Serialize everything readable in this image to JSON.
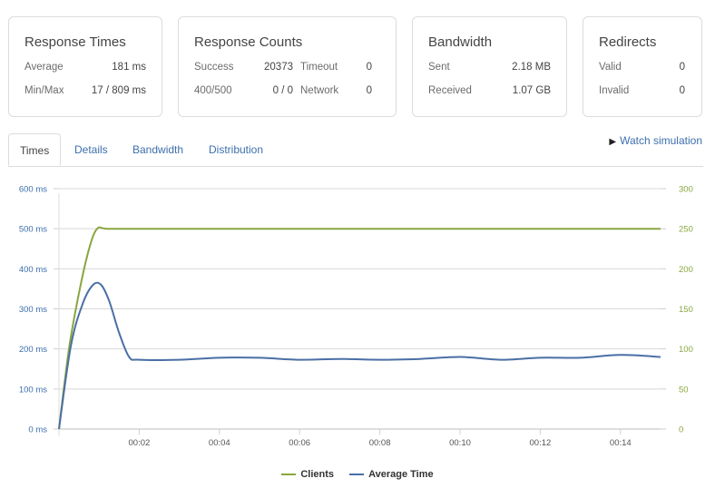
{
  "stats": {
    "response_times": {
      "title": "Response Times",
      "rows": [
        {
          "label": "Average",
          "value": "181 ms"
        },
        {
          "label": "Min/Max",
          "value": "17 / 809 ms"
        }
      ]
    },
    "response_counts": {
      "title": "Response Counts",
      "rows": [
        {
          "label": "Success",
          "value": "20373",
          "label2": "Timeout",
          "value2": "0"
        },
        {
          "label": "400/500",
          "value": "0 / 0",
          "label2": "Network",
          "value2": "0"
        }
      ]
    },
    "bandwidth": {
      "title": "Bandwidth",
      "rows": [
        {
          "label": "Sent",
          "value": "2.18 MB"
        },
        {
          "label": "Received",
          "value": "1.07 GB"
        }
      ]
    },
    "redirects": {
      "title": "Redirects",
      "rows": [
        {
          "label": "Valid",
          "value": "0"
        },
        {
          "label": "Invalid",
          "value": "0"
        }
      ]
    }
  },
  "tabs": [
    {
      "label": "Times",
      "active": true
    },
    {
      "label": "Details",
      "active": false
    },
    {
      "label": "Bandwidth",
      "active": false
    },
    {
      "label": "Distribution",
      "active": false
    }
  ],
  "watch_simulation": "Watch simulation",
  "chart_data": {
    "type": "line",
    "x_ticks": [
      "00:02",
      "00:04",
      "00:06",
      "00:08",
      "00:10",
      "00:12",
      "00:14"
    ],
    "x_tick_values": [
      2,
      4,
      6,
      8,
      10,
      12,
      14
    ],
    "xlim": [
      0,
      15
    ],
    "y_left": {
      "ticks": [
        "0 ms",
        "100 ms",
        "200 ms",
        "300 ms",
        "400 ms",
        "500 ms",
        "600 ms"
      ],
      "lim": [
        0,
        600
      ]
    },
    "y_right": {
      "ticks": [
        "0",
        "50",
        "100",
        "150",
        "200",
        "250",
        "300"
      ],
      "lim": [
        0,
        300
      ]
    },
    "grid": true,
    "legend_position": "bottom-center",
    "series": [
      {
        "name": "Clients",
        "axis": "right",
        "color": "#8aa63f",
        "x": [
          0,
          0.25,
          0.5,
          0.75,
          0.95,
          1.2,
          2,
          4,
          6,
          8,
          10,
          12,
          14,
          15
        ],
        "y": [
          0,
          100,
          170,
          225,
          250,
          250,
          250,
          250,
          250,
          250,
          250,
          250,
          250,
          250
        ]
      },
      {
        "name": "Average Time",
        "axis": "left",
        "color": "#4a6fa5",
        "x": [
          0,
          0.3,
          0.6,
          0.85,
          1.05,
          1.25,
          1.5,
          1.75,
          2,
          3,
          4,
          5,
          6,
          7,
          8,
          9,
          10,
          11,
          12,
          13,
          14,
          15
        ],
        "y": [
          0,
          210,
          315,
          360,
          360,
          320,
          240,
          180,
          173,
          173,
          178,
          178,
          173,
          175,
          173,
          175,
          180,
          173,
          178,
          178,
          185,
          180
        ]
      }
    ]
  }
}
